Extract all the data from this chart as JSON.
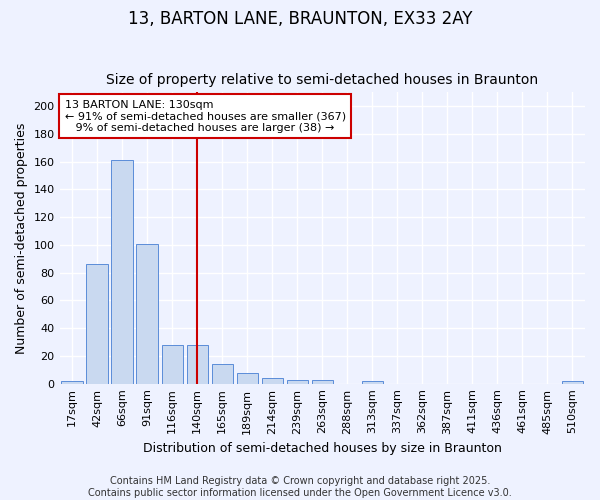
{
  "title_line1": "13, BARTON LANE, BRAUNTON, EX33 2AY",
  "title_line2": "Size of property relative to semi-detached houses in Braunton",
  "xlabel": "Distribution of semi-detached houses by size in Braunton",
  "ylabel": "Number of semi-detached properties",
  "categories": [
    "17sqm",
    "42sqm",
    "66sqm",
    "91sqm",
    "116sqm",
    "140sqm",
    "165sqm",
    "189sqm",
    "214sqm",
    "239sqm",
    "263sqm",
    "288sqm",
    "313sqm",
    "337sqm",
    "362sqm",
    "387sqm",
    "411sqm",
    "436sqm",
    "461sqm",
    "485sqm",
    "510sqm"
  ],
  "values": [
    2,
    86,
    161,
    101,
    28,
    28,
    14,
    8,
    4,
    3,
    3,
    0,
    2,
    0,
    0,
    0,
    0,
    0,
    0,
    0,
    2
  ],
  "bar_color": "#c9d9f0",
  "bar_edge_color": "#5b8dd9",
  "annotation_line1": "13 BARTON LANE: 130sqm",
  "annotation_line2": "← 91% of semi-detached houses are smaller (367)",
  "annotation_line3": "   9% of semi-detached houses are larger (38) →",
  "annotation_box_color": "#ffffff",
  "annotation_box_edge_color": "#cc0000",
  "red_line_x": 5.0,
  "red_line_color": "#cc0000",
  "ylim": [
    0,
    210
  ],
  "yticks": [
    0,
    20,
    40,
    60,
    80,
    100,
    120,
    140,
    160,
    180,
    200
  ],
  "footer_line1": "Contains HM Land Registry data © Crown copyright and database right 2025.",
  "footer_line2": "Contains public sector information licensed under the Open Government Licence v3.0.",
  "background_color": "#eef2ff",
  "plot_bg_color": "#eef2ff",
  "grid_color": "#ffffff",
  "title_fontsize": 12,
  "subtitle_fontsize": 10,
  "axis_label_fontsize": 9,
  "tick_fontsize": 8,
  "annotation_fontsize": 8,
  "footer_fontsize": 7
}
